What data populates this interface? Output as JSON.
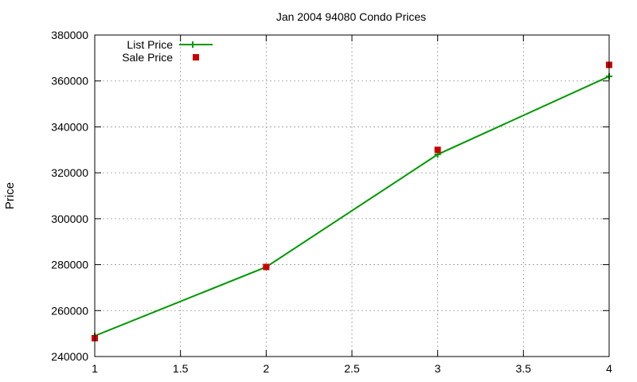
{
  "chart_data": {
    "type": "line",
    "title": "Jan 2004 94080 Condo Prices",
    "xlabel": "",
    "ylabel": "Price",
    "xlim": [
      1,
      4
    ],
    "ylim": [
      240000,
      380000
    ],
    "xticks": [
      1,
      1.5,
      2,
      2.5,
      3,
      3.5,
      4
    ],
    "xtick_labels": [
      "1",
      "1.5",
      "2",
      "2.5",
      "3",
      "3.5",
      "4"
    ],
    "yticks": [
      240000,
      260000,
      280000,
      300000,
      320000,
      340000,
      360000,
      380000
    ],
    "ytick_labels": [
      "240000",
      "260000",
      "280000",
      "300000",
      "320000",
      "340000",
      "360000",
      "380000"
    ],
    "grid": true,
    "legend_position": "top-left",
    "series": [
      {
        "name": "List Price",
        "style": "line-with-plus",
        "color": "#009900",
        "x": [
          1,
          2,
          3,
          4
        ],
        "values": [
          249000,
          279000,
          328000,
          362000
        ]
      },
      {
        "name": "Sale Price",
        "style": "square-points",
        "color": "#cc0000",
        "x": [
          1,
          2,
          3,
          4
        ],
        "values": [
          248000,
          279000,
          330000,
          367000
        ]
      }
    ]
  }
}
